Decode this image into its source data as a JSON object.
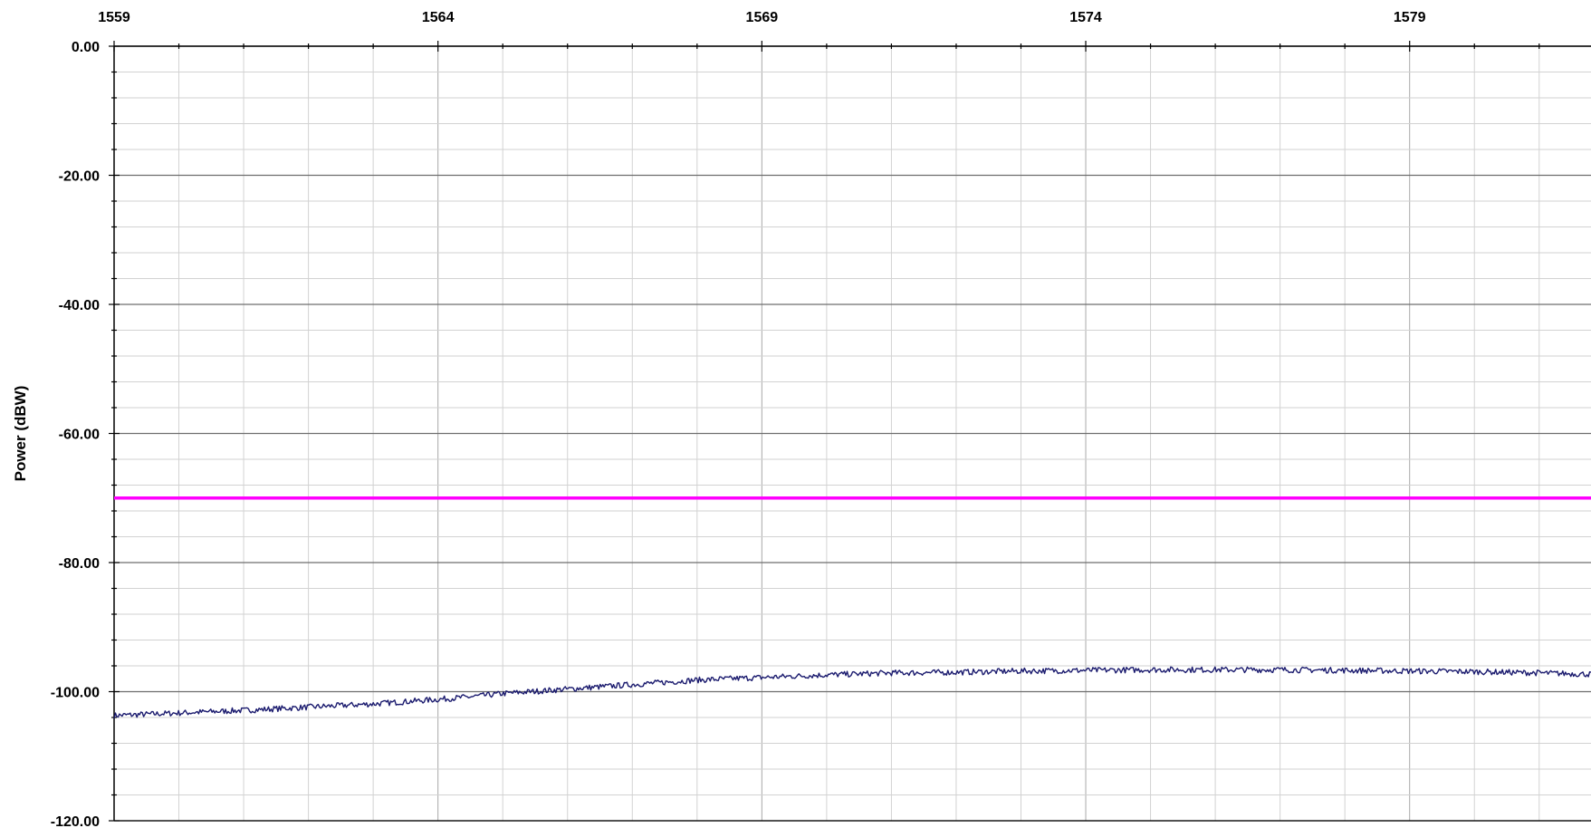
{
  "chart_data": {
    "type": "line",
    "xlabel": "",
    "ylabel": "Power (dBW)",
    "x_axis_position": "top",
    "xlim": [
      1559,
      1581.8
    ],
    "ylim": [
      -120,
      0
    ],
    "x_ticks": [
      1559,
      1564,
      1569,
      1574,
      1579
    ],
    "x_tick_labels": [
      "1559",
      "1564",
      "1569",
      "1574",
      "1579"
    ],
    "y_ticks": [
      0,
      -20,
      -40,
      -60,
      -80,
      -100,
      -120
    ],
    "y_tick_labels": [
      "0.00",
      "-20.00",
      "-40.00",
      "-60.00",
      "-80.00",
      "-100.00",
      "-120.00"
    ],
    "grid": true,
    "series": [
      {
        "color": "#1a1a6e",
        "x": [
          1559,
          1560,
          1561,
          1562,
          1563,
          1564,
          1564.5,
          1565,
          1566,
          1567,
          1568,
          1569,
          1570,
          1571,
          1572,
          1573,
          1574,
          1575,
          1576,
          1577,
          1578,
          1579,
          1580,
          1581,
          1581.8
        ],
        "values": [
          -103.7,
          -103.3,
          -102.9,
          -102.4,
          -101.9,
          -101.2,
          -100.8,
          -100.3,
          -99.6,
          -98.9,
          -98.2,
          -97.8,
          -97.4,
          -97.1,
          -97.0,
          -96.8,
          -96.7,
          -96.6,
          -96.6,
          -96.6,
          -96.7,
          -96.8,
          -96.9,
          -97.1,
          -97.3
        ]
      },
      {
        "color": "#ff00ff",
        "x": [
          1559,
          1581.8
        ],
        "values": [
          -70,
          -70
        ]
      }
    ]
  }
}
